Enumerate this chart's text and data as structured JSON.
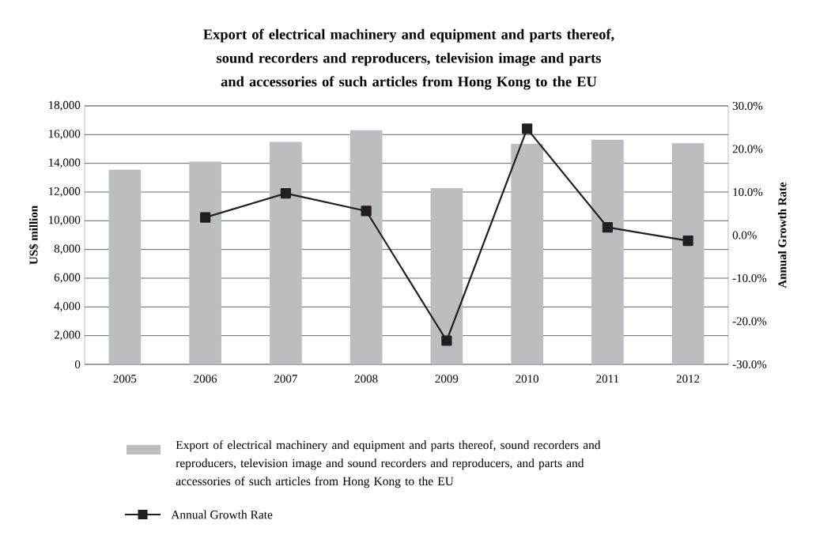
{
  "chart_data": {
    "type": "bar",
    "title": "Export of electrical machinery and equipment and parts thereof, sound recorders and reproducers, television image and parts and accessories of such articles from Hong Kong to the EU",
    "categories": [
      "2005",
      "2006",
      "2007",
      "2008",
      "2009",
      "2010",
      "2011",
      "2012"
    ],
    "series": [
      {
        "name": "Export of electrical machinery and equipment and parts thereof, sound recorders and reproducers, television image and sound recorders and reproducers, and parts and accessories of such articles  from Hong Kong to the EU",
        "color": "#bcbdc1",
        "values": [
          13550,
          14120,
          15500,
          16310,
          12280,
          15360,
          15640,
          15400
        ]
      },
      {
        "name": "Annual Growth Rate",
        "type": "line",
        "axis": "y2",
        "color": "#231f20",
        "marker": "square",
        "line_style": "solid",
        "values": [
          null,
          4.1,
          9.7,
          5.6,
          -24.5,
          24.7,
          1.8,
          -1.3
        ]
      }
    ],
    "ylabel": "US$ million",
    "y2label": "Annual Growth Rate",
    "ylim": [
      0,
      18000
    ],
    "yticks": [
      {
        "value": 0,
        "label": "0"
      },
      {
        "value": 2000,
        "label": "2,000"
      },
      {
        "value": 4000,
        "label": "4,000"
      },
      {
        "value": 6000,
        "label": "6,000"
      },
      {
        "value": 8000,
        "label": "8,000"
      },
      {
        "value": 10000,
        "label": "10,000"
      },
      {
        "value": 12000,
        "label": "12,000"
      },
      {
        "value": 14000,
        "label": "14,000"
      },
      {
        "value": 16000,
        "label": "16,000"
      },
      {
        "value": 18000,
        "label": "18,000"
      }
    ],
    "y2lim": [
      -30,
      30
    ],
    "y2ticks": [
      {
        "value": -30,
        "label": "-30.0%"
      },
      {
        "value": -20,
        "label": "-20.0%"
      },
      {
        "value": -10,
        "label": "-10.0%"
      },
      {
        "value": 0,
        "label": "0.0%"
      },
      {
        "value": 10,
        "label": "10.0%"
      },
      {
        "value": 20,
        "label": "20.0%"
      },
      {
        "value": 30,
        "label": "30.0%"
      }
    ],
    "grid": "y",
    "legend": "bottom"
  }
}
